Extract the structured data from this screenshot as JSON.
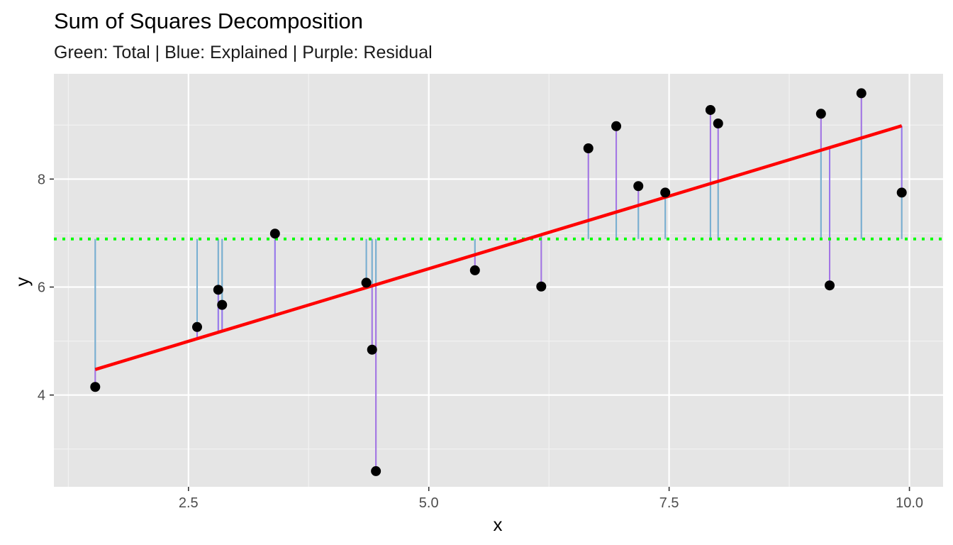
{
  "chart_data": {
    "type": "scatter",
    "title": "Sum of Squares Decomposition",
    "subtitle": "Green: Total | Blue: Explained | Purple: Residual",
    "xlabel": "x",
    "ylabel": "y",
    "xlim": [
      1.1,
      10.35
    ],
    "ylim": [
      2.3,
      9.95
    ],
    "x_ticks": [
      2.5,
      5.0,
      7.5,
      10.0
    ],
    "x_tick_labels": [
      "2.5",
      "5.0",
      "7.5",
      "10.0"
    ],
    "y_ticks": [
      4,
      6,
      8
    ],
    "y_tick_labels": [
      "4",
      "6",
      "8"
    ],
    "grid": true,
    "mean_y": 6.89,
    "regression_line": {
      "intercept": 3.65,
      "slope": 0.538,
      "x_range": [
        1.53,
        9.92
      ]
    },
    "points": [
      {
        "x": 1.53,
        "y": 4.15
      },
      {
        "x": 2.59,
        "y": 5.26
      },
      {
        "x": 2.81,
        "y": 5.95
      },
      {
        "x": 2.85,
        "y": 5.67
      },
      {
        "x": 3.4,
        "y": 6.99
      },
      {
        "x": 4.35,
        "y": 6.08
      },
      {
        "x": 4.41,
        "y": 4.84
      },
      {
        "x": 4.45,
        "y": 2.59
      },
      {
        "x": 5.48,
        "y": 6.31
      },
      {
        "x": 6.17,
        "y": 6.01
      },
      {
        "x": 6.66,
        "y": 8.57
      },
      {
        "x": 6.95,
        "y": 8.98
      },
      {
        "x": 7.18,
        "y": 7.87
      },
      {
        "x": 7.46,
        "y": 7.75
      },
      {
        "x": 7.93,
        "y": 9.28
      },
      {
        "x": 8.01,
        "y": 9.03
      },
      {
        "x": 9.08,
        "y": 9.21
      },
      {
        "x": 9.17,
        "y": 6.03
      },
      {
        "x": 9.5,
        "y": 9.59
      },
      {
        "x": 9.92,
        "y": 7.75
      }
    ],
    "colors": {
      "panel": "#e5e5e5",
      "grid_major": "#ffffff",
      "grid_minor": "#f2f2f2",
      "total": "#00ff00",
      "explained": "#6aaed6",
      "residual": "#a05ff2",
      "total_segment": "#a3acbc",
      "regression": "#ff0000",
      "point": "#000000"
    }
  }
}
